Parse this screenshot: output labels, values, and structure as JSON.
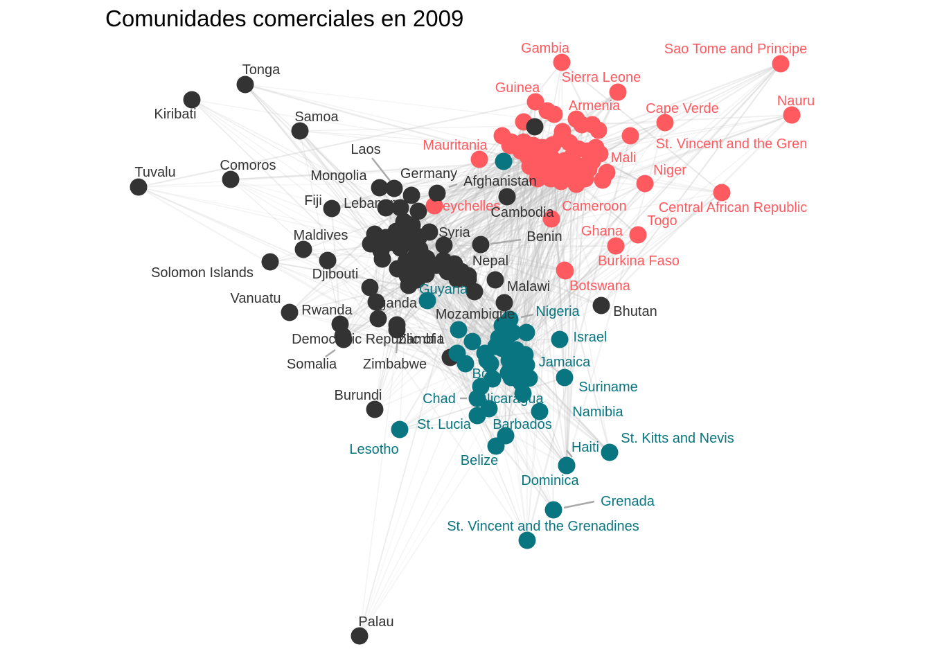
{
  "title": "Comunidades comerciales en 2009",
  "colors": {
    "black": "#333333",
    "red": "#FF5A5F",
    "teal": "#087580",
    "edge": "#bdbdbd",
    "leader": "#a9a9a9"
  },
  "nodes": [
    {
      "label": "Gambia",
      "c": "red"
    },
    {
      "label": "Sao Tome and Principe",
      "c": "red"
    },
    {
      "label": "Sierra Leone",
      "c": "red"
    },
    {
      "label": "Guinea",
      "c": "red"
    },
    {
      "label": "Armenia",
      "c": "red"
    },
    {
      "label": "Nauru",
      "c": "red"
    },
    {
      "label": "Cape Verde",
      "c": "red"
    },
    {
      "label": "Mauritania",
      "c": "red"
    },
    {
      "label": "St. Vincent and the Gren",
      "c": "red"
    },
    {
      "label": "Mali",
      "c": "red"
    },
    {
      "label": "Niger",
      "c": "red"
    },
    {
      "label": "Seychelles",
      "c": "red"
    },
    {
      "label": "Cameroon",
      "c": "red"
    },
    {
      "label": "Central African Republic",
      "c": "red"
    },
    {
      "label": "Togo",
      "c": "red"
    },
    {
      "label": "Ghana",
      "c": "red"
    },
    {
      "label": "Burkina Faso",
      "c": "red"
    },
    {
      "label": "Botswana",
      "c": "red"
    },
    {
      "label": "Tonga",
      "c": "black"
    },
    {
      "label": "Kiribati",
      "c": "black"
    },
    {
      "label": "Samoa",
      "c": "black"
    },
    {
      "label": "Laos",
      "c": "black"
    },
    {
      "label": "Tuvalu",
      "c": "black"
    },
    {
      "label": "Comoros",
      "c": "black"
    },
    {
      "label": "Mongolia",
      "c": "black"
    },
    {
      "label": "Germany",
      "c": "black"
    },
    {
      "label": "Afghanistan",
      "c": "black"
    },
    {
      "label": "Fiji",
      "c": "black"
    },
    {
      "label": "Lebanon",
      "c": "black"
    },
    {
      "label": "Cambodia",
      "c": "black"
    },
    {
      "label": "Syria",
      "c": "black"
    },
    {
      "label": "Maldives",
      "c": "black"
    },
    {
      "label": "Benin",
      "c": "black"
    },
    {
      "label": "Solomon Islands",
      "c": "black"
    },
    {
      "label": "Nepal",
      "c": "black"
    },
    {
      "label": "Djibouti",
      "c": "black"
    },
    {
      "label": "Malawi",
      "c": "black"
    },
    {
      "label": "Vanuatu",
      "c": "black"
    },
    {
      "label": "Rwanda",
      "c": "black"
    },
    {
      "label": "Uganda",
      "c": "black"
    },
    {
      "label": "Mozambique",
      "c": "black"
    },
    {
      "label": "Bhutan",
      "c": "black"
    },
    {
      "label": "Democratic Republic of t",
      "c": "black"
    },
    {
      "label": "Zambia",
      "c": "black"
    },
    {
      "label": "Somalia",
      "c": "black"
    },
    {
      "label": "Zimbabwe",
      "c": "black"
    },
    {
      "label": "Burundi",
      "c": "black"
    },
    {
      "label": "Palau",
      "c": "black"
    },
    {
      "label": "Guyana",
      "c": "teal"
    },
    {
      "label": "Nigeria",
      "c": "teal"
    },
    {
      "label": "Israel",
      "c": "teal"
    },
    {
      "label": "Jamaica",
      "c": "teal"
    },
    {
      "label": "Bolivia",
      "c": "teal"
    },
    {
      "label": "Suriname",
      "c": "teal"
    },
    {
      "label": "Chad",
      "c": "teal"
    },
    {
      "label": "Nicaragua",
      "c": "teal"
    },
    {
      "label": "Namibia",
      "c": "teal"
    },
    {
      "label": "St. Lucia",
      "c": "teal"
    },
    {
      "label": "Barbados",
      "c": "teal"
    },
    {
      "label": "Lesotho",
      "c": "teal"
    },
    {
      "label": "Haiti",
      "c": "teal"
    },
    {
      "label": "St. Kitts and Nevis",
      "c": "teal"
    },
    {
      "label": "Belize",
      "c": "teal"
    },
    {
      "label": "Dominica",
      "c": "teal"
    },
    {
      "label": "Grenada",
      "c": "teal"
    },
    {
      "label": "St. Vincent and the Grenadines",
      "c": "teal"
    }
  ]
}
